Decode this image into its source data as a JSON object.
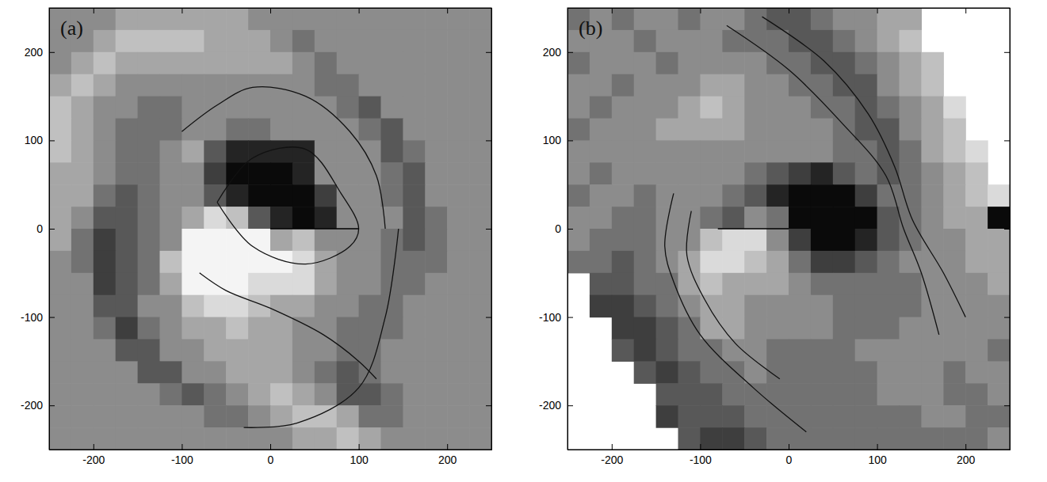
{
  "chart_data": [
    {
      "type": "heatmap",
      "title": "(a)",
      "xlim": [
        -250,
        250
      ],
      "ylim": [
        -250,
        250
      ],
      "xticks": [
        -200,
        -100,
        0,
        100,
        200
      ],
      "yticks": [
        -200,
        -100,
        0,
        100,
        200
      ],
      "zlim": [
        0,
        9
      ],
      "x": [
        -237.5,
        -212.5,
        -187.5,
        -162.5,
        -137.5,
        -112.5,
        -87.5,
        -62.5,
        -37.5,
        -12.5,
        12.5,
        37.5,
        62.5,
        87.5,
        112.5,
        137.5,
        162.5,
        187.5,
        212.5,
        237.5
      ],
      "y": [
        237.5,
        212.5,
        187.5,
        162.5,
        137.5,
        112.5,
        87.5,
        62.5,
        37.5,
        12.5,
        -12.5,
        -37.5,
        -62.5,
        -87.5,
        -112.5,
        -137.5,
        -162.5,
        -187.5,
        -212.5,
        -237.5
      ],
      "cells": [
        [
          5,
          5,
          5,
          6,
          6,
          6,
          6,
          6,
          6,
          5,
          5,
          5,
          5,
          5,
          5,
          5,
          5,
          5,
          5,
          5
        ],
        [
          5,
          5,
          6,
          7,
          7,
          7,
          7,
          6,
          6,
          6,
          5,
          4,
          5,
          5,
          5,
          5,
          5,
          5,
          5,
          5
        ],
        [
          5,
          6,
          7,
          6,
          6,
          6,
          6,
          6,
          6,
          6,
          6,
          5,
          4,
          5,
          5,
          5,
          5,
          5,
          5,
          5
        ],
        [
          6,
          7,
          6,
          5,
          5,
          5,
          5,
          5,
          5,
          5,
          5,
          5,
          4,
          4,
          5,
          5,
          5,
          5,
          5,
          5
        ],
        [
          7,
          6,
          5,
          5,
          4,
          4,
          5,
          5,
          5,
          5,
          5,
          5,
          5,
          4,
          3,
          5,
          5,
          5,
          5,
          5
        ],
        [
          7,
          6,
          5,
          4,
          4,
          4,
          5,
          5,
          4,
          4,
          5,
          5,
          5,
          5,
          4,
          3,
          5,
          5,
          5,
          5
        ],
        [
          7,
          6,
          5,
          4,
          4,
          5,
          6,
          3,
          1,
          1,
          1,
          1,
          5,
          5,
          5,
          3,
          4,
          5,
          5,
          5
        ],
        [
          6,
          6,
          5,
          4,
          4,
          5,
          5,
          2,
          0,
          0,
          0,
          1,
          5,
          5,
          5,
          4,
          3,
          5,
          5,
          5
        ],
        [
          6,
          6,
          4,
          3,
          4,
          5,
          5,
          3,
          1,
          0,
          0,
          0,
          2,
          5,
          5,
          4,
          3,
          5,
          5,
          5
        ],
        [
          6,
          5,
          3,
          3,
          4,
          5,
          6,
          8,
          7,
          3,
          1,
          0,
          1,
          5,
          5,
          5,
          3,
          4,
          5,
          5
        ],
        [
          6,
          4,
          2,
          3,
          4,
          5,
          9,
          9,
          9,
          9,
          6,
          7,
          5,
          5,
          5,
          4,
          3,
          4,
          5,
          5
        ],
        [
          5,
          4,
          2,
          3,
          4,
          7,
          9,
          9,
          9,
          9,
          9,
          8,
          6,
          5,
          5,
          4,
          4,
          4,
          5,
          5
        ],
        [
          5,
          5,
          2,
          3,
          4,
          6,
          9,
          9,
          9,
          8,
          8,
          8,
          6,
          5,
          5,
          4,
          4,
          5,
          5,
          5
        ],
        [
          5,
          5,
          3,
          3,
          5,
          5,
          7,
          8,
          8,
          7,
          6,
          6,
          5,
          5,
          4,
          4,
          5,
          5,
          5,
          5
        ],
        [
          5,
          5,
          4,
          2,
          4,
          5,
          6,
          6,
          7,
          6,
          6,
          5,
          5,
          4,
          4,
          4,
          5,
          5,
          5,
          5
        ],
        [
          5,
          5,
          5,
          3,
          3,
          5,
          5,
          6,
          6,
          6,
          6,
          5,
          5,
          4,
          4,
          5,
          5,
          5,
          5,
          5
        ],
        [
          5,
          5,
          5,
          5,
          3,
          3,
          5,
          5,
          6,
          6,
          6,
          5,
          4,
          3,
          4,
          5,
          5,
          5,
          5,
          5
        ],
        [
          5,
          5,
          5,
          5,
          5,
          4,
          3,
          4,
          5,
          6,
          7,
          6,
          5,
          3,
          3,
          4,
          5,
          5,
          5,
          5
        ],
        [
          5,
          5,
          5,
          5,
          5,
          5,
          5,
          4,
          4,
          5,
          6,
          7,
          7,
          6,
          4,
          4,
          5,
          5,
          5,
          5
        ],
        [
          5,
          5,
          5,
          5,
          5,
          5,
          5,
          5,
          5,
          5,
          5,
          6,
          6,
          7,
          6,
          5,
          5,
          5,
          5,
          5
        ]
      ],
      "contours": [
        {
          "x": [
            -100,
            -60,
            -20,
            40,
            90,
            120,
            130
          ],
          "y": [
            110,
            140,
            160,
            150,
            110,
            60,
            0
          ]
        },
        {
          "x": [
            145,
            130,
            100,
            30,
            -30
          ],
          "y": [
            0,
            -100,
            -180,
            -220,
            -225
          ]
        },
        {
          "x": [
            -80,
            -50,
            0,
            60,
            100,
            120
          ],
          "y": [
            -50,
            -70,
            -90,
            -120,
            -150,
            -170
          ]
        },
        {
          "x": [
            -60,
            -20,
            40,
            80,
            100,
            90,
            40,
            -20,
            -60
          ],
          "y": [
            30,
            80,
            90,
            40,
            0,
            -20,
            -40,
            -20,
            30
          ]
        }
      ],
      "slit": {
        "x": [
          0,
          100
        ],
        "y": [
          0,
          0
        ]
      }
    },
    {
      "type": "heatmap",
      "title": "(b)",
      "xlim": [
        -250,
        250
      ],
      "ylim": [
        -250,
        250
      ],
      "xticks": [
        -200,
        -100,
        0,
        100,
        200
      ],
      "yticks": [
        -200,
        -100,
        0,
        100,
        200
      ],
      "zlim": [
        0,
        9
      ],
      "x": [
        -237.5,
        -212.5,
        -187.5,
        -162.5,
        -137.5,
        -112.5,
        -87.5,
        -62.5,
        -37.5,
        -12.5,
        12.5,
        37.5,
        62.5,
        87.5,
        112.5,
        137.5,
        162.5,
        187.5,
        212.5,
        237.5
      ],
      "y": [
        237.5,
        212.5,
        187.5,
        162.5,
        137.5,
        112.5,
        87.5,
        62.5,
        37.5,
        12.5,
        -12.5,
        -37.5,
        -62.5,
        -87.5,
        -112.5,
        -137.5,
        -162.5,
        -187.5,
        -212.5,
        -237.5
      ],
      "cells": [
        [
          4,
          5,
          4,
          5,
          5,
          4,
          5,
          5,
          4,
          3,
          3,
          4,
          5,
          5,
          6,
          6,
          null,
          null,
          null,
          null
        ],
        [
          5,
          5,
          5,
          4,
          5,
          5,
          5,
          4,
          4,
          4,
          3,
          3,
          4,
          5,
          6,
          7,
          null,
          null,
          null,
          null
        ],
        [
          4,
          5,
          5,
          5,
          4,
          5,
          5,
          5,
          5,
          4,
          4,
          3,
          3,
          4,
          5,
          6,
          7,
          null,
          null,
          null
        ],
        [
          5,
          5,
          4,
          5,
          5,
          5,
          6,
          6,
          5,
          5,
          4,
          4,
          3,
          3,
          5,
          6,
          7,
          null,
          null,
          null
        ],
        [
          5,
          4,
          5,
          5,
          5,
          6,
          7,
          6,
          5,
          5,
          5,
          4,
          4,
          3,
          4,
          5,
          6,
          8,
          null,
          null
        ],
        [
          4,
          5,
          5,
          5,
          6,
          6,
          6,
          6,
          5,
          5,
          5,
          5,
          4,
          3,
          3,
          5,
          6,
          7,
          null,
          null
        ],
        [
          5,
          5,
          5,
          5,
          5,
          5,
          5,
          5,
          5,
          5,
          5,
          5,
          4,
          4,
          3,
          4,
          6,
          7,
          8,
          null
        ],
        [
          5,
          4,
          5,
          5,
          5,
          5,
          5,
          5,
          4,
          3,
          2,
          1,
          3,
          4,
          3,
          4,
          5,
          6,
          7,
          null
        ],
        [
          4,
          5,
          5,
          4,
          5,
          5,
          5,
          4,
          3,
          1,
          0,
          0,
          0,
          2,
          4,
          4,
          5,
          6,
          7,
          8
        ],
        [
          5,
          5,
          4,
          4,
          5,
          5,
          4,
          3,
          5,
          4,
          0,
          0,
          0,
          0,
          3,
          4,
          5,
          6,
          6,
          0
        ],
        [
          5,
          4,
          4,
          4,
          5,
          5,
          7,
          8,
          8,
          5,
          2,
          0,
          0,
          1,
          3,
          4,
          5,
          5,
          6,
          6
        ],
        [
          4,
          4,
          3,
          4,
          5,
          6,
          8,
          8,
          7,
          6,
          4,
          2,
          2,
          3,
          4,
          5,
          5,
          5,
          6,
          6
        ],
        [
          null,
          3,
          3,
          4,
          4,
          6,
          7,
          6,
          6,
          6,
          5,
          4,
          4,
          4,
          4,
          4,
          5,
          5,
          5,
          6
        ],
        [
          null,
          2,
          2,
          3,
          4,
          5,
          6,
          6,
          5,
          5,
          5,
          5,
          4,
          4,
          4,
          4,
          5,
          5,
          5,
          5
        ],
        [
          null,
          null,
          2,
          2,
          3,
          4,
          6,
          6,
          5,
          5,
          5,
          5,
          4,
          4,
          4,
          5,
          5,
          5,
          5,
          5
        ],
        [
          null,
          null,
          3,
          2,
          3,
          4,
          4,
          5,
          5,
          4,
          4,
          4,
          4,
          5,
          5,
          5,
          5,
          5,
          5,
          4
        ],
        [
          null,
          null,
          null,
          3,
          2,
          3,
          4,
          4,
          5,
          4,
          4,
          4,
          4,
          4,
          5,
          5,
          5,
          4,
          5,
          5
        ],
        [
          null,
          null,
          null,
          null,
          3,
          3,
          3,
          4,
          4,
          4,
          4,
          4,
          4,
          4,
          5,
          5,
          5,
          4,
          4,
          5
        ],
        [
          null,
          null,
          null,
          null,
          2,
          3,
          3,
          3,
          4,
          4,
          4,
          4,
          4,
          4,
          4,
          4,
          5,
          5,
          4,
          4
        ],
        [
          null,
          null,
          null,
          null,
          null,
          3,
          2,
          2,
          3,
          4,
          4,
          4,
          4,
          4,
          4,
          4,
          4,
          4,
          4,
          5
        ]
      ],
      "contours": [
        {
          "x": [
            -130,
            -140,
            -130,
            -100,
            -40,
            20
          ],
          "y": [
            40,
            -20,
            -60,
            -120,
            -180,
            -230
          ]
        },
        {
          "x": [
            -110,
            -115,
            -95,
            -60,
            -10
          ],
          "y": [
            20,
            -30,
            -80,
            -130,
            -170
          ]
        },
        {
          "x": [
            -70,
            0,
            60,
            110,
            130,
            150,
            170
          ],
          "y": [
            230,
            180,
            120,
            60,
            0,
            -50,
            -120
          ]
        },
        {
          "x": [
            -30,
            40,
            90,
            120,
            140,
            175,
            200
          ],
          "y": [
            240,
            190,
            130,
            70,
            10,
            -50,
            -100
          ]
        }
      ],
      "slit": {
        "x": [
          -80,
          0
        ],
        "y": [
          0,
          0
        ]
      }
    }
  ]
}
